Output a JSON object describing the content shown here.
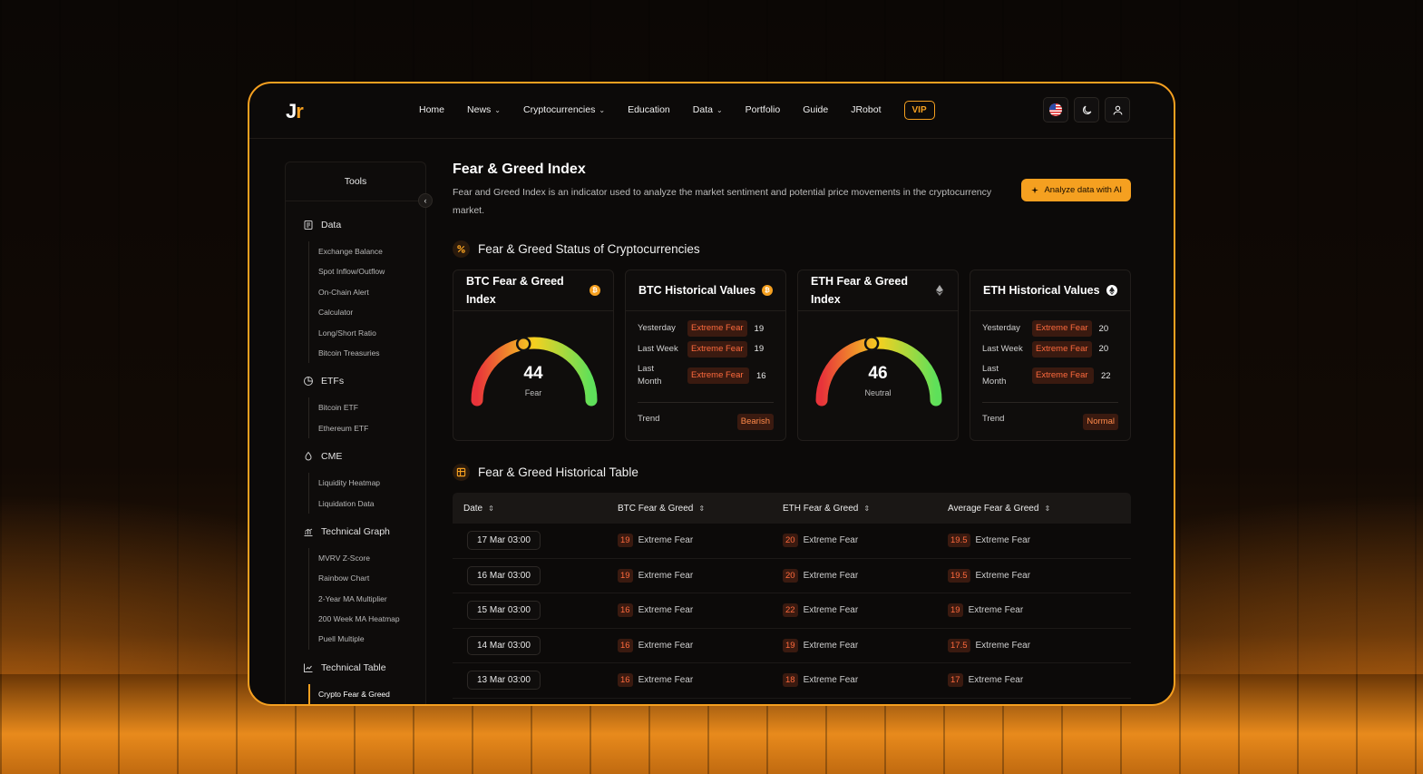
{
  "app": {
    "logo_j": "J",
    "logo_r": "r"
  },
  "nav": {
    "items": [
      {
        "label": "Home",
        "dropdown": false
      },
      {
        "label": "News",
        "dropdown": true
      },
      {
        "label": "Cryptocurrencies",
        "dropdown": true
      },
      {
        "label": "Education",
        "dropdown": false
      },
      {
        "label": "Data",
        "dropdown": true
      },
      {
        "label": "Portfolio",
        "dropdown": false
      },
      {
        "label": "Guide",
        "dropdown": false
      },
      {
        "label": "JRobot",
        "dropdown": false
      }
    ],
    "vip": "VIP"
  },
  "top_actions": {
    "icons": [
      "us-flag-icon",
      "moon-icon",
      "user-icon"
    ]
  },
  "sidebar": {
    "title": "Tools",
    "groups": [
      {
        "icon": "data-icon",
        "label": "Data",
        "items": [
          "Exchange Balance",
          "Spot Inflow/Outflow",
          "On-Chain Alert",
          "Calculator",
          "Long/Short Ratio",
          "Bitcoin Treasuries"
        ]
      },
      {
        "icon": "pie-chart-icon",
        "label": "ETFs",
        "items": [
          "Bitcoin ETF",
          "Ethereum ETF"
        ]
      },
      {
        "icon": "drop-icon",
        "label": "CME",
        "items": [
          "Liquidity Heatmap",
          "Liquidation Data"
        ]
      },
      {
        "icon": "bar-graph-icon",
        "label": "Technical Graph",
        "items": [
          "MVRV Z-Score",
          "Rainbow Chart",
          "2-Year MA Multiplier",
          "200 Week MA Heatmap",
          "Puell Multiple"
        ]
      },
      {
        "icon": "line-chart-icon",
        "label": "Technical Table",
        "items": [
          "Crypto Fear & Greed"
        ]
      }
    ],
    "active_item": "Crypto Fear & Greed"
  },
  "main": {
    "title": "Fear & Greed Index",
    "description": "Fear and Greed Index is an indicator used to analyze the market sentiment and potential price movements in the cryptocurrency market.",
    "ai_button": "Analyze data with AI",
    "status_section": "Fear & Greed Status of Cryptocurrencies",
    "table_section": "Fear & Greed Historical Table"
  },
  "cards": {
    "btc_index": {
      "title": "BTC Fear & Greed Index",
      "value": "44",
      "label": "Fear",
      "level": 0.44
    },
    "btc_hist": {
      "title": "BTC Historical Values",
      "rows": [
        {
          "label": "Yesterday",
          "tag": "Extreme Fear",
          "value": "19"
        },
        {
          "label": "Last Week",
          "tag": "Extreme Fear",
          "value": "19"
        },
        {
          "label": "Last Month",
          "tag": "Extreme Fear",
          "value": "16"
        }
      ],
      "trend_label": "Trend",
      "trend_value": "Bearish"
    },
    "eth_index": {
      "title": "ETH Fear & Greed Index",
      "value": "46",
      "label": "Neutral",
      "level": 0.46
    },
    "eth_hist": {
      "title": "ETH Historical Values",
      "rows": [
        {
          "label": "Yesterday",
          "tag": "Extreme Fear",
          "value": "20"
        },
        {
          "label": "Last Week",
          "tag": "Extreme Fear",
          "value": "20"
        },
        {
          "label": "Last Month",
          "tag": "Extreme Fear",
          "value": "22"
        }
      ],
      "trend_label": "Trend",
      "trend_value": "Normal"
    }
  },
  "table": {
    "headers": [
      "Date",
      "BTC Fear & Greed",
      "ETH Fear & Greed",
      "Average Fear & Greed"
    ],
    "rows": [
      {
        "date": "17 Mar 03:00",
        "btc": "19",
        "btc_label": "Extreme Fear",
        "eth": "20",
        "eth_label": "Extreme Fear",
        "avg": "19.5",
        "avg_label": "Extreme Fear"
      },
      {
        "date": "16 Mar 03:00",
        "btc": "19",
        "btc_label": "Extreme Fear",
        "eth": "20",
        "eth_label": "Extreme Fear",
        "avg": "19.5",
        "avg_label": "Extreme Fear"
      },
      {
        "date": "15 Mar 03:00",
        "btc": "16",
        "btc_label": "Extreme Fear",
        "eth": "22",
        "eth_label": "Extreme Fear",
        "avg": "19",
        "avg_label": "Extreme Fear"
      },
      {
        "date": "14 Mar 03:00",
        "btc": "16",
        "btc_label": "Extreme Fear",
        "eth": "19",
        "eth_label": "Extreme Fear",
        "avg": "17.5",
        "avg_label": "Extreme Fear"
      },
      {
        "date": "13 Mar 03:00",
        "btc": "16",
        "btc_label": "Extreme Fear",
        "eth": "18",
        "eth_label": "Extreme Fear",
        "avg": "17",
        "avg_label": "Extreme Fear"
      }
    ]
  },
  "colors": {
    "accent": "#f5a020",
    "fear_tag_bg": "#3a1a10",
    "fear_tag_text": "#ff6a3d",
    "gauge_low": "#e8333a",
    "gauge_mid": "#f5d020",
    "gauge_high": "#5ee05a"
  }
}
